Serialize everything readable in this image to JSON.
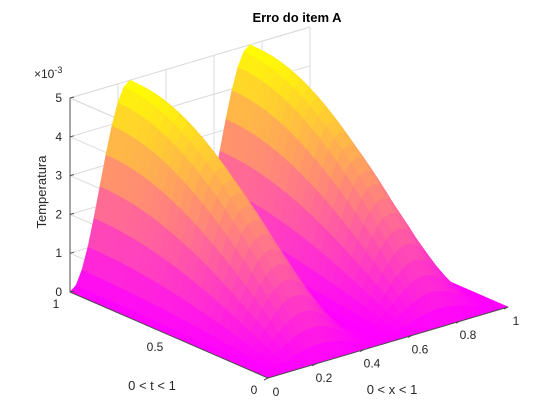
{
  "chart_data": {
    "type": "surface",
    "title": "Erro do item A",
    "xlabel": "0 < x < 1",
    "ylabel": "0 < t < 1",
    "zlabel": "Temperatura",
    "z_exponent_label": "×10^-3",
    "xlim": [
      0,
      1
    ],
    "ylim": [
      0,
      1
    ],
    "zlim": [
      0,
      0.005
    ],
    "x_ticks": [
      "0",
      "0.2",
      "0.4",
      "0.6",
      "0.8",
      "1"
    ],
    "y_ticks": [
      "0",
      "0.5",
      "1"
    ],
    "z_ticks": [
      "0",
      "1",
      "2",
      "3",
      "4",
      "5"
    ],
    "grid": true,
    "colormap": "spring",
    "peaks": [
      {
        "x": 0.25,
        "t": 1.0,
        "z": 0.005
      },
      {
        "x": 0.75,
        "t": 1.0,
        "z": 0.005
      }
    ],
    "view": {
      "azimuth": -37.5,
      "elevation": 30
    }
  }
}
